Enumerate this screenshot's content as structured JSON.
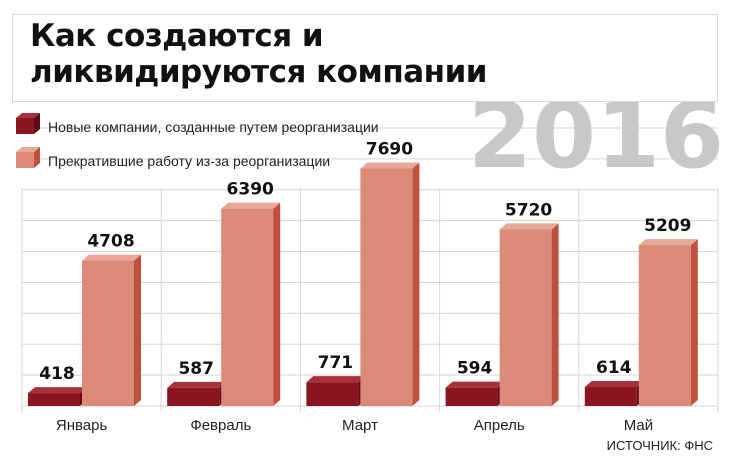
{
  "title": "Как создаются и ликвидируются компании",
  "year": "2016",
  "source": "ИСТОЧНИК: ФНС",
  "colors": {
    "series1": "#8a1420",
    "series1_side": "#5e0c14",
    "series1_top": "#a8303a",
    "series2": "#dc8a78",
    "series2_side": "#c0503e",
    "series2_top": "#e8a898",
    "grid": "#d6d6d6",
    "year": "#c8c8c8"
  },
  "chart_data": {
    "type": "bar",
    "title": "Как создаются и ликвидируются компании",
    "categories": [
      "Январь",
      "Февраль",
      "Март",
      "Апрель",
      "Май"
    ],
    "series": [
      {
        "name": "Новые компании, созданные путем реорганизации",
        "values": [
          418,
          587,
          771,
          594,
          614
        ]
      },
      {
        "name": "Прекратившие работу из-за реорганизации",
        "values": [
          4708,
          6390,
          7690,
          5720,
          5209
        ]
      }
    ],
    "ylim": [
      0,
      9000
    ],
    "grid": true,
    "legend_position": "top-left"
  }
}
